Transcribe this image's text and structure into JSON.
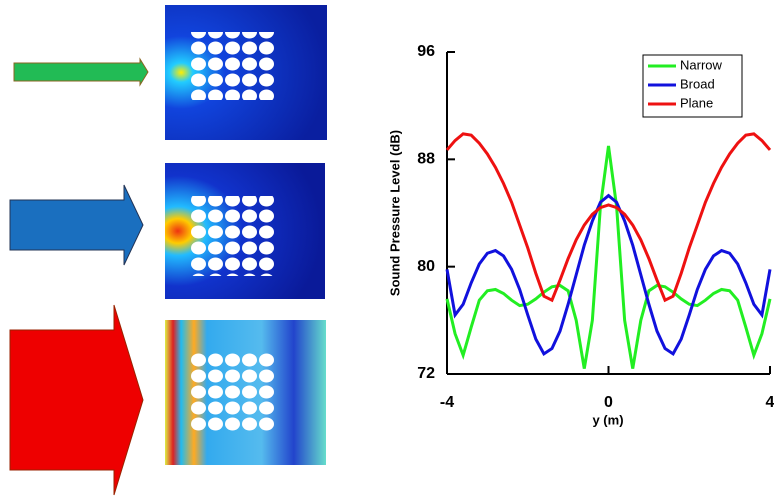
{
  "chart_data": {
    "type": "line",
    "x_label": "y (m)",
    "y_label": "Sound Pressure Level (dB)",
    "x": [
      -4,
      -3.8,
      -3.6,
      -3.4,
      -3.2,
      -3,
      -2.8,
      -2.6,
      -2.4,
      -2.2,
      -2,
      -1.8,
      -1.6,
      -1.4,
      -1.2,
      -1,
      -0.8,
      -0.6,
      -0.4,
      -0.2,
      0,
      0.2,
      0.4,
      0.6,
      0.8,
      1,
      1.2,
      1.4,
      1.6,
      1.8,
      2,
      2.2,
      2.4,
      2.6,
      2.8,
      3,
      3.2,
      3.4,
      3.6,
      3.8,
      4
    ],
    "xlim": [
      -4,
      4
    ],
    "xticks": [
      -4,
      0,
      4
    ],
    "ylim": [
      72,
      96
    ],
    "yticks": [
      72,
      80,
      88,
      96
    ],
    "legend": "top-right",
    "series": [
      {
        "name": "Narrow",
        "color": "#22ee22",
        "values": [
          77.6,
          75,
          73.4,
          75.5,
          77.5,
          78.2,
          78.3,
          78,
          77.5,
          77.1,
          77.2,
          77.6,
          78.1,
          78.5,
          78.6,
          78.2,
          76,
          72.4,
          76,
          84.5,
          89,
          84.5,
          76,
          72.4,
          76,
          78.2,
          78.6,
          78.5,
          78.1,
          77.6,
          77.2,
          77.1,
          77.5,
          78,
          78.3,
          78.2,
          77.5,
          75.5,
          73.4,
          75,
          77.6
        ]
      },
      {
        "name": "Broad",
        "color": "#1111dd",
        "values": [
          79.8,
          76.4,
          77.2,
          78.8,
          80.2,
          81,
          81.2,
          80.8,
          79.8,
          78.3,
          76.4,
          74.6,
          73.5,
          73.9,
          75.2,
          77.2,
          79.4,
          81.6,
          83.4,
          84.8,
          85.3,
          84.8,
          83.4,
          81.6,
          79.4,
          77.2,
          75.2,
          73.9,
          73.5,
          74.6,
          76.4,
          78.3,
          79.8,
          80.8,
          81.2,
          81,
          80.2,
          78.8,
          77.2,
          76.4,
          79.8
        ]
      },
      {
        "name": "Plane",
        "color": "#ee1111",
        "values": [
          88.7,
          89.4,
          89.9,
          89.8,
          89.2,
          88.4,
          87.4,
          86.2,
          84.8,
          83.1,
          81.4,
          79.5,
          77.8,
          77.5,
          79,
          80.6,
          82,
          83.1,
          83.9,
          84.4,
          84.6,
          84.4,
          83.9,
          83.1,
          82,
          80.6,
          79,
          77.5,
          77.8,
          79.5,
          81.4,
          83.1,
          84.8,
          86.2,
          87.4,
          88.4,
          89.2,
          89.8,
          89.9,
          89.4,
          88.7
        ]
      }
    ]
  }
}
